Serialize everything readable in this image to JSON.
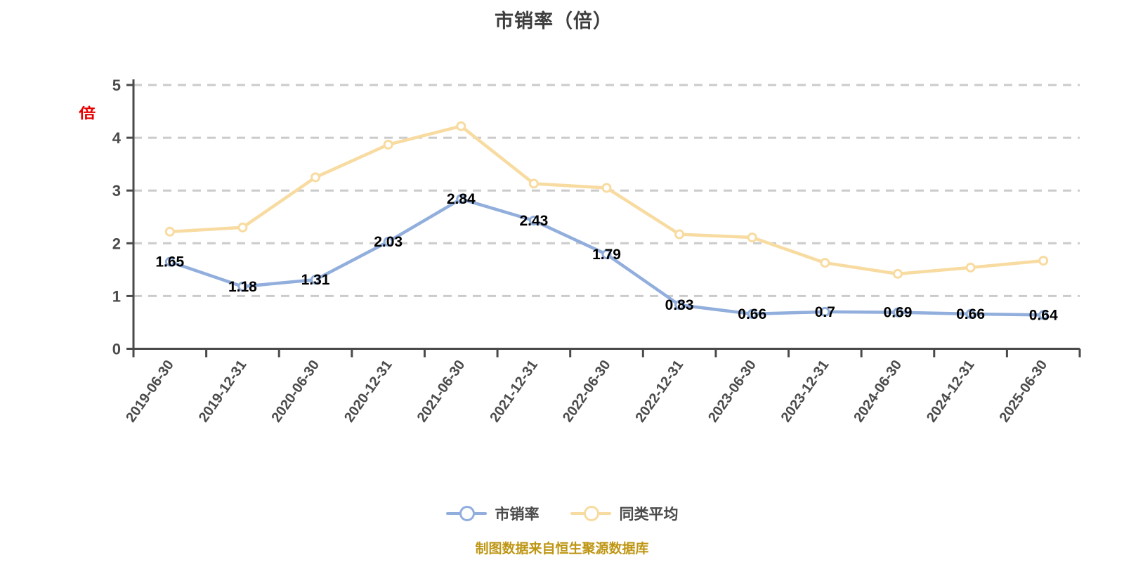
{
  "title": "市销率（倍）",
  "y_axis_unit": "倍",
  "source_note": "制图数据来自恒生聚源数据库",
  "colors": {
    "axis": "#4a4a4a",
    "grid": "#cbcbcb",
    "tick_label": "#4a4a4a",
    "data_label": "#000000",
    "title": "#3d3d3d",
    "source": "#be9614",
    "unit_label": "#e60000",
    "marker_fill": "#ffffff"
  },
  "chart_data": {
    "type": "line",
    "categories": [
      "2019-06-30",
      "2019-12-31",
      "2020-06-30",
      "2020-12-31",
      "2021-06-30",
      "2021-12-31",
      "2022-06-30",
      "2022-12-31",
      "2023-06-30",
      "2023-12-31",
      "2024-06-30",
      "2024-12-31",
      "2025-06-30"
    ],
    "series": [
      {
        "name": "市销率",
        "color": "#91aedc",
        "show_labels": true,
        "values": [
          1.65,
          1.18,
          1.31,
          2.03,
          2.84,
          2.43,
          1.79,
          0.83,
          0.66,
          0.7,
          0.69,
          0.66,
          0.64
        ]
      },
      {
        "name": "同类平均",
        "color": "#f8dba0",
        "show_labels": false,
        "values": [
          2.22,
          2.3,
          3.25,
          3.87,
          4.22,
          3.13,
          3.05,
          2.17,
          2.11,
          1.63,
          1.42,
          1.54,
          1.67
        ]
      }
    ],
    "ylabel": "倍",
    "xlabel": "",
    "ylim": [
      0,
      5
    ],
    "y_ticks": [
      0,
      1,
      2,
      3,
      4,
      5
    ],
    "grid": "dashed horizontal",
    "legend_position": "bottom",
    "x_label_rotation": -55
  }
}
